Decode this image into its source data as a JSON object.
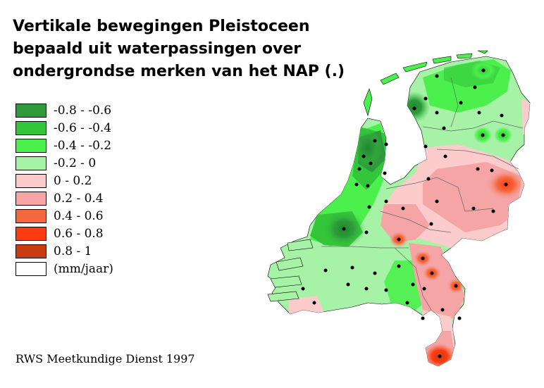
{
  "title": {
    "line1": "Vertikale bewegingen Pleistoceen",
    "line2": "bepaald uit waterpassingen over",
    "line3": "ondergrondse merken van het NAP (.)"
  },
  "legend": {
    "items": [
      {
        "label": "-0.8 - -0.6",
        "color": "#2f9a3c"
      },
      {
        "label": "-0.6 - -0.4",
        "color": "#33c63a"
      },
      {
        "label": "-0.4 - -0.2",
        "color": "#4cf04c"
      },
      {
        "label": "-0.2 - 0",
        "color": "#a6f2a6"
      },
      {
        "label": "0 - 0.2",
        "color": "#fccccc"
      },
      {
        "label": "0.2 - 0.4",
        "color": "#f5a5a5"
      },
      {
        "label": "0.4 - 0.6",
        "color": "#f4683d"
      },
      {
        "label": "0.6 - 0.8",
        "color": "#fc3c10"
      },
      {
        "label": "0.8 - 1",
        "color": "#c83c10"
      },
      {
        "label": "(mm/jaar)",
        "color": "#ffffff"
      }
    ]
  },
  "credit": "RWS Meetkundige Dienst 1997"
}
